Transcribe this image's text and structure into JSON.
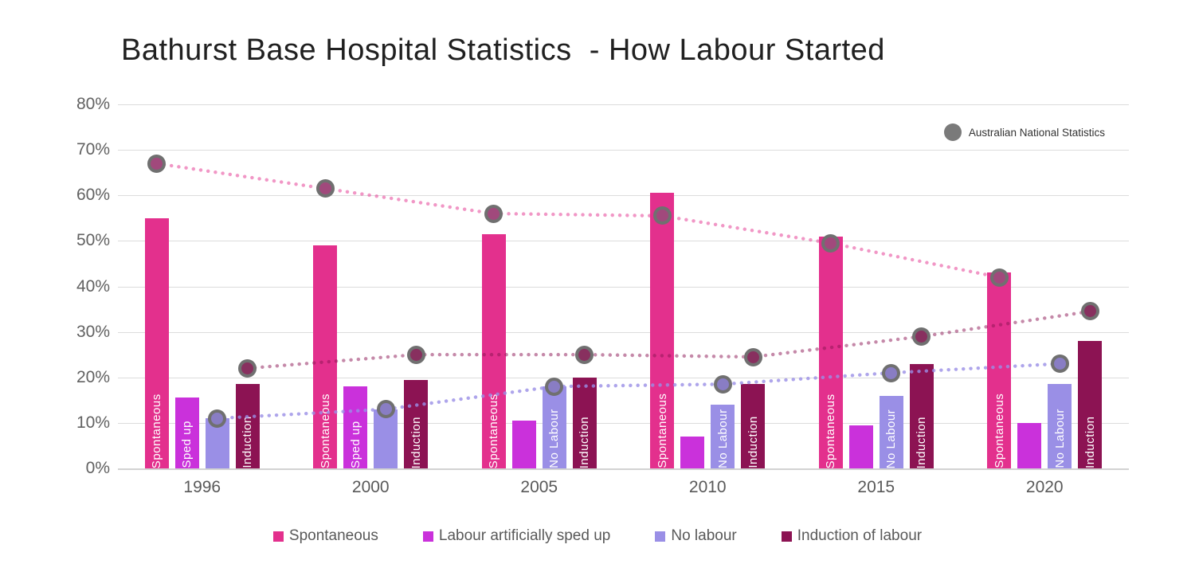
{
  "title": "Bathurst Base Hospital Statistics  - How Labour Started",
  "chart_data": {
    "type": "bar",
    "title": "Bathurst Base Hospital Statistics  - How Labour Started",
    "categories": [
      "1996",
      "2000",
      "2005",
      "2010",
      "2015",
      "2020"
    ],
    "ylim": [
      0,
      80
    ],
    "yticks": [
      0,
      10,
      20,
      30,
      40,
      50,
      60,
      70,
      80
    ],
    "ytick_format": "%",
    "grid": true,
    "legend_position": "bottom",
    "series": [
      {
        "name": "Spontaneous",
        "color": "#E3308D",
        "bar_label": "Spontaneous",
        "values": [
          55,
          49,
          51.5,
          60.5,
          51,
          43
        ],
        "label_shown": [
          true,
          true,
          true,
          true,
          true,
          true
        ]
      },
      {
        "name": "Labour artificially sped up",
        "color": "#CA31DB",
        "bar_label": "Sped up",
        "values": [
          15.5,
          18,
          10.5,
          7,
          9.5,
          10
        ],
        "label_shown": [
          true,
          true,
          false,
          false,
          false,
          false
        ]
      },
      {
        "name": "No labour",
        "color": "#9A8FE6",
        "bar_label": "No Labour",
        "values": [
          11,
          13,
          18,
          14,
          16,
          18.5
        ],
        "label_shown": [
          false,
          false,
          true,
          true,
          true,
          true
        ]
      },
      {
        "name": "Induction of labour",
        "color": "#8C1353",
        "bar_label": "Induction",
        "values": [
          18.5,
          19.5,
          20,
          18.5,
          23,
          28
        ],
        "label_shown": [
          true,
          true,
          true,
          true,
          true,
          true
        ]
      }
    ],
    "national_series": [
      {
        "name": "Spontaneous",
        "anchor_series": 0,
        "line_color": "rgba(227,48,141,0.5)",
        "marker_inner": "#A1497C",
        "values": [
          67,
          61.5,
          56,
          55.5,
          49.5,
          42
        ]
      },
      {
        "name": "No labour",
        "anchor_series": 2,
        "line_color": "rgba(154,143,230,0.8)",
        "marker_inner": "#897DC4",
        "values": [
          11,
          13,
          18,
          18.5,
          21,
          23
        ]
      },
      {
        "name": "Induction of labour",
        "anchor_series": 3,
        "line_color": "rgba(140,19,83,0.5)",
        "marker_inner": "#88305F",
        "values": [
          22,
          25,
          25,
          24.5,
          29,
          34.5
        ]
      }
    ],
    "marker_legend": {
      "label": "Australian National Statistics",
      "color": "#7A7A7A"
    },
    "marker_ring_color": "#707070",
    "grid_color": "#dcdcdc"
  }
}
